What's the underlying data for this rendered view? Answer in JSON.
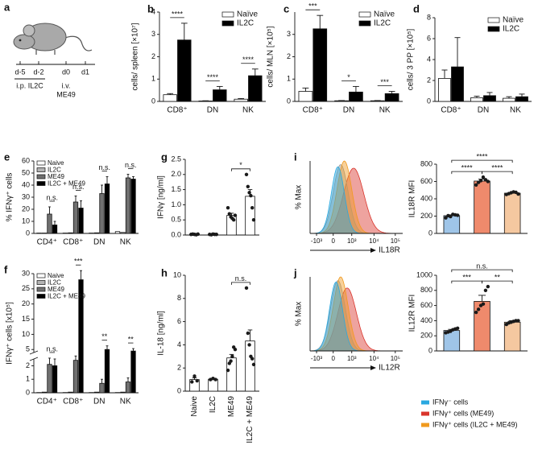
{
  "schematic": {
    "label": "a",
    "timepoints": [
      "d-5",
      "d-2",
      "d0",
      "d1"
    ],
    "treatments": [
      "i.p. IL2C",
      "i.v.",
      "ME49"
    ]
  },
  "chart_data": [
    {
      "label": "b",
      "type": "bar",
      "ylabel": "cells/ spleen [×10⁷]",
      "categories": [
        "CD8⁺",
        "DN",
        "NK"
      ],
      "series": [
        {
          "name": "Naïve",
          "color": "#ffffff",
          "values": [
            0.3,
            0.02,
            0.1
          ],
          "errors": [
            0.05,
            0.01,
            0.03
          ]
        },
        {
          "name": "IL2C",
          "color": "#000000",
          "values": [
            2.75,
            0.52,
            1.15
          ],
          "errors": [
            0.75,
            0.15,
            0.3
          ]
        }
      ],
      "ylim": [
        0,
        4
      ],
      "yticks": [
        0,
        1,
        2,
        3,
        4
      ],
      "legend": "upper right",
      "annotations": [
        {
          "text": "****",
          "category": 0,
          "series": [
            0,
            1
          ]
        },
        {
          "text": "****",
          "category": 1,
          "series": [
            0,
            1
          ]
        },
        {
          "text": "****",
          "category": 2,
          "series": [
            0,
            1
          ]
        }
      ]
    },
    {
      "label": "c",
      "type": "bar",
      "ylabel": "cells/ MLN [×10⁵]",
      "categories": [
        "CD8⁺",
        "DN",
        "NK"
      ],
      "series": [
        {
          "name": "Naïve",
          "color": "#ffffff",
          "values": [
            0.45,
            0.03,
            0.03
          ],
          "errors": [
            0.15,
            0.01,
            0.01
          ]
        },
        {
          "name": "IL2C",
          "color": "#000000",
          "values": [
            3.25,
            0.42,
            0.35
          ],
          "errors": [
            0.6,
            0.25,
            0.1
          ]
        }
      ],
      "ylim": [
        0,
        4
      ],
      "yticks": [
        0,
        1,
        2,
        3
      ],
      "legend": "upper right",
      "annotations": [
        {
          "text": "***",
          "category": 0,
          "series": [
            0,
            1
          ]
        },
        {
          "text": "*",
          "category": 1,
          "series": [
            0,
            1
          ]
        },
        {
          "text": "***",
          "category": 2,
          "series": [
            0,
            1
          ]
        }
      ]
    },
    {
      "label": "d",
      "type": "bar",
      "ylabel": "cells/ 3 PP [×10⁵]",
      "categories": [
        "CD8⁺",
        "DN",
        "NK"
      ],
      "series": [
        {
          "name": "Naïve",
          "color": "#ffffff",
          "values": [
            2.2,
            0.35,
            0.3
          ],
          "errors": [
            0.8,
            0.15,
            0.15
          ]
        },
        {
          "name": "IL2C",
          "color": "#000000",
          "values": [
            3.3,
            0.55,
            0.45
          ],
          "errors": [
            2.8,
            0.3,
            0.25
          ]
        }
      ],
      "ylim": [
        0,
        8
      ],
      "yticks": [
        0,
        2,
        4,
        6,
        8
      ],
      "legend": "upper right"
    },
    {
      "label": "e",
      "type": "bar",
      "ylabel": "% IFNγ⁺ cells",
      "categories": [
        "CD4⁺",
        "CD8⁺",
        "DN",
        "NK"
      ],
      "series": [
        {
          "name": "Naive",
          "color": "#ffffff",
          "values": [
            0.3,
            0.3,
            0.3,
            1.5
          ]
        },
        {
          "name": "IL2C",
          "color": "#b3b3b3",
          "values": [
            0.3,
            0.5,
            0.5,
            0.8
          ]
        },
        {
          "name": "ME49",
          "color": "#707070",
          "values": [
            16,
            26,
            33,
            46
          ],
          "errors": [
            6,
            5,
            7,
            3
          ]
        },
        {
          "name": "IL2C + ME49",
          "color": "#000000",
          "values": [
            7,
            21,
            41,
            45
          ],
          "errors": [
            3,
            6,
            6,
            2
          ]
        }
      ],
      "ylim": [
        0,
        60
      ],
      "yticks": [
        0,
        10,
        20,
        30,
        40,
        50,
        60
      ],
      "legend": "upper left",
      "annotations": [
        {
          "text": "n.s.",
          "category": 0,
          "series": [
            2,
            3
          ]
        },
        {
          "text": "n.s.",
          "category": 1,
          "series": [
            2,
            3
          ]
        },
        {
          "text": "n.s.",
          "category": 2,
          "series": [
            2,
            3
          ]
        },
        {
          "text": "n.s.",
          "category": 3,
          "series": [
            2,
            3
          ]
        }
      ]
    },
    {
      "label": "f",
      "type": "bar",
      "ylabel": "IFNγ⁺ cells [x10⁵]",
      "categories": [
        "CD4⁺",
        "CD8⁺",
        "DN",
        "NK"
      ],
      "series": [
        {
          "name": "Naive",
          "color": "#ffffff",
          "values": [
            0.02,
            0.02,
            0.02,
            0.02
          ]
        },
        {
          "name": "IL2C",
          "color": "#b3b3b3",
          "values": [
            0.05,
            0.05,
            0.05,
            0.05
          ]
        },
        {
          "name": "ME49",
          "color": "#707070",
          "values": [
            2.1,
            2.4,
            0.7,
            0.8
          ],
          "errors": [
            0.6,
            0.8,
            0.3,
            0.3
          ]
        },
        {
          "name": "IL2C + ME49",
          "color": "#000000",
          "values": [
            2.0,
            28,
            5,
            4.5
          ],
          "errors": [
            0.5,
            3,
            1.2,
            0.8
          ]
        }
      ],
      "ylim": [
        0,
        30
      ],
      "ybreak": [
        2.5,
        4
      ],
      "yticks": [
        0,
        1,
        2,
        5,
        10,
        15,
        20,
        25,
        30
      ],
      "legend": "upper left",
      "annotations": [
        {
          "text": "n.s.",
          "category": 0,
          "series": [
            2,
            3
          ]
        },
        {
          "text": "***",
          "category": 1,
          "series": [
            2,
            3
          ]
        },
        {
          "text": "**",
          "category": 2,
          "series": [
            2,
            3
          ]
        },
        {
          "text": "**",
          "category": 3,
          "series": [
            2,
            3
          ]
        }
      ]
    },
    {
      "label": "g",
      "type": "bar",
      "ylabel": "IFNγ [ng/ml]",
      "categories": [
        null,
        null,
        null,
        null
      ],
      "color": "#ffffff",
      "values": [
        0.02,
        0.02,
        0.65,
        1.28
      ],
      "errors": [
        0.005,
        0.005,
        0.07,
        0.22
      ],
      "points": [
        [
          0.02,
          0.03,
          0.02,
          0.01,
          0.03
        ],
        [
          0.02,
          0.01,
          0.03,
          0.02,
          0.02
        ],
        [
          0.9,
          0.7,
          0.6,
          0.55,
          0.5,
          0.65
        ],
        [
          2.0,
          1.6,
          1.4,
          1.3,
          0.9,
          0.5
        ]
      ],
      "ylim": [
        0,
        2.5
      ],
      "yticks": [
        {
          "value": 0,
          "label": "0.0"
        },
        {
          "value": 0.5,
          "label": "0.5"
        },
        {
          "value": 1,
          "label": "1.0"
        },
        {
          "value": 1.5,
          "label": "1.5"
        },
        {
          "value": 2,
          "label": "2.0"
        },
        {
          "value": 2.5,
          "label": "2.5"
        }
      ],
      "annotations": [
        {
          "text": "*",
          "between": [
            2,
            3
          ]
        }
      ]
    },
    {
      "label": "h",
      "type": "bar",
      "ylabel": "IL-18 [ng/ml]",
      "categories": [
        "Naive",
        "IL2C",
        "ME49",
        "IL2C + ME49"
      ],
      "color": "#ffffff",
      "values": [
        1.0,
        1.03,
        2.87,
        4.33
      ],
      "errors": [
        0.15,
        0.03,
        0.3,
        0.95
      ],
      "points": [
        [
          0.8,
          1.3,
          0.9
        ],
        [
          1.0,
          1.1,
          1.0
        ],
        [
          1.8,
          2.4,
          2.6,
          3.0,
          3.8,
          3.6
        ],
        [
          8.9,
          5.0,
          4.0,
          3.0,
          2.8,
          2.3
        ]
      ],
      "ylim": [
        0,
        10
      ],
      "yticks": [
        0,
        2,
        4,
        6,
        8,
        10
      ],
      "annotations": [
        {
          "text": "n.s.",
          "between": [
            2,
            3
          ]
        }
      ]
    },
    {
      "type": "bar",
      "ylabel": "IL18R MFI",
      "categories": [
        null,
        null,
        null
      ],
      "colors": [
        "#9fc5e8",
        "#ef8a6c",
        "#f5c8a0"
      ],
      "values": [
        205,
        605,
        465
      ],
      "errors": [
        10,
        22,
        9
      ],
      "points": [
        [
          180,
          205,
          195,
          220,
          215,
          210
        ],
        [
          560,
          590,
          610,
          650,
          620,
          600
        ],
        [
          450,
          460,
          470,
          480,
          475,
          455
        ]
      ],
      "ylim": [
        0,
        800
      ],
      "yticks": [
        0,
        200,
        400,
        600,
        800
      ],
      "annotations": [
        {
          "text": "****",
          "between": [
            0,
            2
          ]
        },
        {
          "text": "****",
          "between": [
            0,
            1
          ]
        },
        {
          "text": "****",
          "between": [
            1,
            2
          ]
        }
      ]
    },
    {
      "type": "bar",
      "ylabel": "IL12R MFI",
      "categories": [
        null,
        null,
        null
      ],
      "colors": [
        "#9fc5e8",
        "#ef8a6c",
        "#f5c8a0"
      ],
      "values": [
        270,
        655,
        380
      ],
      "errors": [
        15,
        80,
        20
      ],
      "points": [
        [
          240,
          250,
          260,
          280,
          290,
          300
        ],
        [
          510,
          550,
          600,
          620,
          800,
          850
        ],
        [
          350,
          370,
          380,
          390,
          400,
          400
        ]
      ],
      "ylim": [
        0,
        1000
      ],
      "yticks": [
        0,
        200,
        400,
        600,
        800,
        1000
      ],
      "annotations": [
        {
          "text": "n.s.",
          "between": [
            0,
            2
          ]
        },
        {
          "text": "***",
          "between": [
            0,
            1
          ]
        },
        {
          "text": "**",
          "between": [
            1,
            2
          ]
        }
      ]
    }
  ],
  "flow_plots": [
    {
      "label": "i",
      "ylabel": "% Max",
      "xlabel": "IL18R",
      "xticks": [
        "-10³",
        "0",
        "10³",
        "10⁴",
        "10⁵"
      ]
    },
    {
      "label": "j",
      "ylabel": "% Max",
      "xlabel": "IL12R",
      "xticks": [
        "-10³",
        "0",
        "10³",
        "10⁴",
        "10⁵"
      ]
    }
  ],
  "flow_legend": [
    {
      "name": "IFNγ⁻ cells",
      "color": "#29a8e0"
    },
    {
      "name": "IFNγ⁺ cells (ME49)",
      "color": "#d9342b"
    },
    {
      "name": "IFNγ⁺ cells (IL2C + ME49)",
      "color": "#f09a1e"
    }
  ]
}
